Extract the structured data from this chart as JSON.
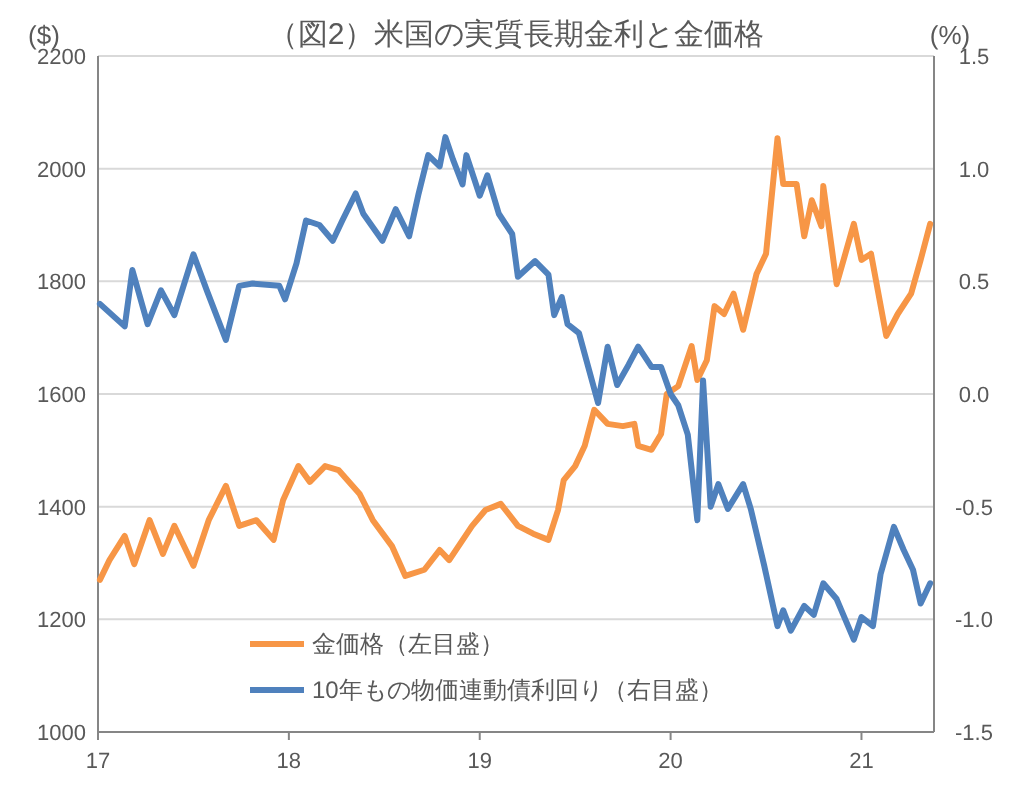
{
  "chart_data": {
    "type": "line",
    "title": "（図2）米国の実質長期金利と金価格",
    "ylabel": "($)",
    "y2label": "(%)",
    "xlim": [
      17,
      21.38
    ],
    "xticks": [
      17,
      18,
      19,
      20,
      21
    ],
    "ylim": [
      1000,
      2200
    ],
    "yticks": [
      1000,
      1200,
      1400,
      1600,
      1800,
      2000,
      2200
    ],
    "y2lim": [
      -1.5,
      1.5
    ],
    "y2ticks": [
      {
        "value": -1.5,
        "label": "-1.5"
      },
      {
        "value": -1,
        "label": "-1.0"
      },
      {
        "value": -0.5,
        "label": "-0.5"
      },
      {
        "value": 0,
        "label": "0.0"
      },
      {
        "value": 0.5,
        "label": "0.5"
      },
      {
        "value": 1,
        "label": "1.0"
      },
      {
        "value": 1.5,
        "label": "1.5"
      }
    ],
    "grid": "y",
    "legend": "bottom",
    "series": [
      {
        "name": "金価格（左目盛）",
        "color": "#f79646",
        "x": [
          17.01,
          17.06,
          17.14,
          17.19,
          17.27,
          17.34,
          17.4,
          17.5,
          17.58,
          17.67,
          17.74,
          17.83,
          17.92,
          17.97,
          18.05,
          18.11,
          18.19,
          18.26,
          18.37,
          18.44,
          18.54,
          18.61,
          18.71,
          18.79,
          18.84,
          18.96,
          19.03,
          19.11,
          19.2,
          19.28,
          19.36,
          19.41,
          19.44,
          19.5,
          19.55,
          19.6,
          19.67,
          19.75,
          19.81,
          19.83,
          19.9,
          19.95,
          19.98,
          20.04,
          20.11,
          20.14,
          20.19,
          20.23,
          20.28,
          20.33,
          20.38,
          20.45,
          20.5,
          20.56,
          20.59,
          20.66,
          20.7,
          20.74,
          20.79,
          20.8,
          20.87,
          20.96,
          21.0,
          21.05,
          21.13,
          21.19,
          21.26,
          21.31,
          21.36
        ],
        "values": [
          1270,
          1305,
          1348,
          1298,
          1376,
          1316,
          1366,
          1295,
          1376,
          1437,
          1366,
          1376,
          1341,
          1412,
          1472,
          1444,
          1472,
          1465,
          1423,
          1376,
          1330,
          1277,
          1288,
          1323,
          1305,
          1366,
          1394,
          1405,
          1366,
          1352,
          1341,
          1394,
          1447,
          1472,
          1508,
          1572,
          1547,
          1543,
          1547,
          1508,
          1501,
          1529,
          1600,
          1614,
          1685,
          1625,
          1660,
          1756,
          1742,
          1778,
          1714,
          1813,
          1849,
          2054,
          1973,
          1973,
          1880,
          1944,
          1898,
          1969,
          1795,
          1902,
          1838,
          1849,
          1703,
          1742,
          1778,
          1838,
          1902
        ]
      },
      {
        "name": "10年もの物価連動債利回り（右目盛）",
        "color": "#4f81bd",
        "axis": "y2",
        "x": [
          17.01,
          17.14,
          17.18,
          17.26,
          17.33,
          17.4,
          17.5,
          17.57,
          17.67,
          17.74,
          17.81,
          17.95,
          17.98,
          18.04,
          18.09,
          18.16,
          18.23,
          18.28,
          18.35,
          18.39,
          18.49,
          18.56,
          18.63,
          18.68,
          18.73,
          18.79,
          18.82,
          18.86,
          18.91,
          18.93,
          19.0,
          19.04,
          19.1,
          19.17,
          19.2,
          19.29,
          19.36,
          19.39,
          19.43,
          19.46,
          19.52,
          19.62,
          19.67,
          19.72,
          19.78,
          19.83,
          19.9,
          19.95,
          20.0,
          20.04,
          20.09,
          20.14,
          20.17,
          20.21,
          20.25,
          20.3,
          20.38,
          20.42,
          20.49,
          20.56,
          20.59,
          20.63,
          20.7,
          20.75,
          20.8,
          20.87,
          20.96,
          21.0,
          21.06,
          21.1,
          21.17,
          21.22,
          21.27,
          21.31,
          21.36
        ],
        "values": [
          0.4,
          0.3,
          0.55,
          0.31,
          0.46,
          0.35,
          0.62,
          0.46,
          0.24,
          0.48,
          0.49,
          0.48,
          0.42,
          0.58,
          0.77,
          0.75,
          0.68,
          0.77,
          0.89,
          0.8,
          0.68,
          0.82,
          0.7,
          0.89,
          1.06,
          1.01,
          1.14,
          1.04,
          0.93,
          1.06,
          0.88,
          0.97,
          0.8,
          0.71,
          0.52,
          0.59,
          0.53,
          0.35,
          0.43,
          0.31,
          0.27,
          -0.04,
          0.21,
          0.04,
          0.13,
          0.21,
          0.12,
          0.12,
          0.0,
          -0.05,
          -0.18,
          -0.56,
          0.06,
          -0.5,
          -0.4,
          -0.51,
          -0.4,
          -0.51,
          -0.76,
          -1.03,
          -0.96,
          -1.05,
          -0.94,
          -0.98,
          -0.84,
          -0.91,
          -1.09,
          -0.99,
          -1.03,
          -0.8,
          -0.59,
          -0.69,
          -0.78,
          -0.93,
          -0.84
        ]
      }
    ]
  }
}
